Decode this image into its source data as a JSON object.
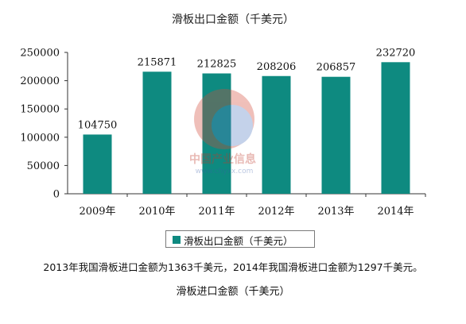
{
  "chart_data": {
    "type": "bar",
    "title": "滑板出口金额（千美元）",
    "categories": [
      "2009年",
      "2010年",
      "2011年",
      "2012年",
      "2013年",
      "2014年"
    ],
    "values": [
      104750,
      215871,
      212825,
      208206,
      206857,
      232720
    ],
    "data_labels": [
      "104750",
      "215871",
      "212825",
      "208206",
      "206857",
      "232720"
    ],
    "y_ticks": [
      "0",
      "50000",
      "100000",
      "150000",
      "200000",
      "250000"
    ],
    "ylim": [
      0,
      250000
    ],
    "grid": false,
    "legend": {
      "position": "bottom",
      "label": "滑板出口金额（千美元）"
    },
    "colors": {
      "bar": "#0e8a80",
      "axis": "#333333"
    }
  },
  "watermark": {
    "text": "中国产业信息",
    "subtext": "www.chyxx.com"
  },
  "caption": "2013年我国滑板进口金额为1363千美元，2014年我国滑板进口金额为1297千美元。",
  "subcaption": "滑板进口金额（千美元）"
}
